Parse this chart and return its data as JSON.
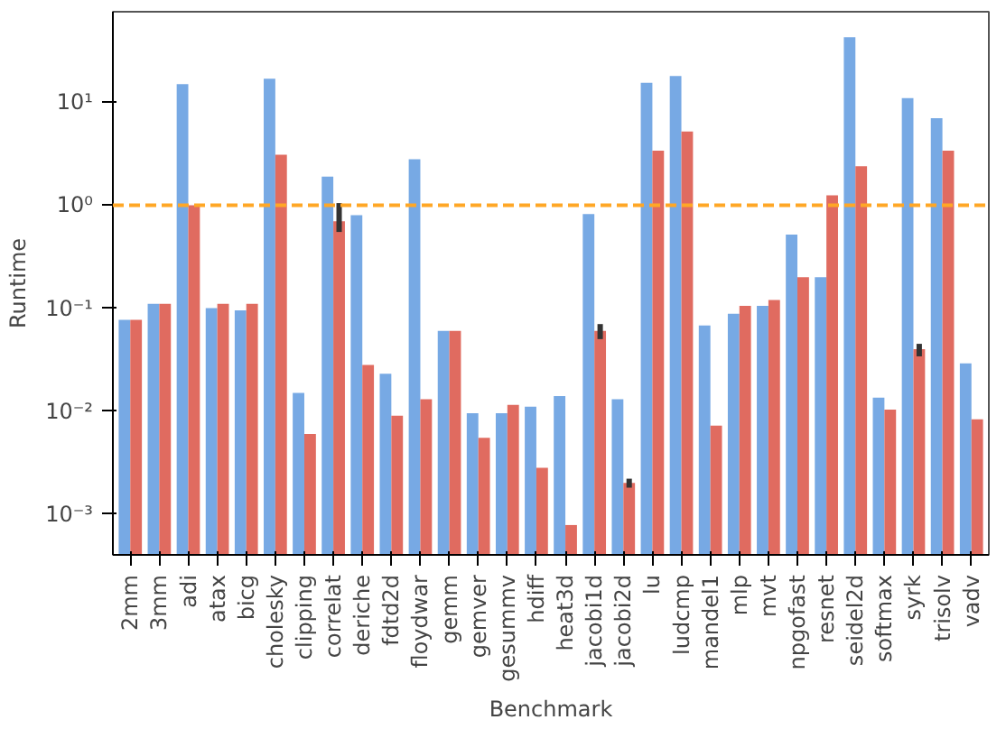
{
  "chart_data": {
    "type": "bar",
    "xlabel": "Benchmark",
    "ylabel": "Runtime",
    "categories": [
      "2mm",
      "3mm",
      "adi",
      "atax",
      "bicg",
      "cholesky",
      "clipping",
      "correlat",
      "deriche",
      "fdtd2d",
      "floydwar",
      "gemm",
      "gemver",
      "gesummv",
      "hdiff",
      "heat3d",
      "jacobi1d",
      "jacobi2d",
      "lu",
      "ludcmp",
      "mandel1",
      "mlp",
      "mvt",
      "npgofast",
      "resnet",
      "seidel2d",
      "softmax",
      "syrk",
      "trisolv",
      "vadv"
    ],
    "series": [
      {
        "color": "#77a9e4",
        "values": [
          0.077,
          0.11,
          15,
          0.1,
          0.095,
          17,
          0.015,
          1.9,
          0.8,
          0.023,
          2.8,
          0.06,
          0.0095,
          0.0095,
          0.011,
          0.014,
          0.82,
          0.013,
          15.5,
          18,
          0.068,
          0.088,
          0.105,
          0.52,
          0.2,
          43,
          0.0135,
          11,
          7,
          0.029
        ]
      },
      {
        "color": "#e06b60",
        "values": [
          0.077,
          0.11,
          1.0,
          0.11,
          0.11,
          3.1,
          0.006,
          0.7,
          0.028,
          0.009,
          0.013,
          0.06,
          0.0055,
          0.0115,
          0.0028,
          0.00078,
          0.06,
          0.002,
          3.4,
          5.2,
          0.0072,
          0.105,
          0.12,
          0.2,
          1.25,
          2.4,
          0.0103,
          0.04,
          3.4,
          0.0083
        ],
        "errors": [
          null,
          null,
          null,
          null,
          null,
          null,
          null,
          [
            0.55,
            1.05
          ],
          null,
          null,
          null,
          null,
          null,
          null,
          null,
          null,
          [
            0.05,
            0.07
          ],
          [
            0.0018,
            0.0022
          ],
          null,
          null,
          null,
          null,
          null,
          null,
          null,
          null,
          null,
          [
            0.034,
            0.045
          ],
          null,
          null
        ]
      }
    ],
    "log": "y",
    "ylim": [
      0.0004,
      76
    ],
    "yticks": [
      {
        "value": 0.001,
        "label": "10⁻³"
      },
      {
        "value": 0.01,
        "label": "10⁻²"
      },
      {
        "value": 0.1,
        "label": "10⁻¹"
      },
      {
        "value": 1,
        "label": "10⁰"
      },
      {
        "value": 10,
        "label": "10¹"
      }
    ],
    "ref_lines": [
      {
        "axis": "y",
        "value": 1,
        "color": "#ffa726",
        "line_style": "dashed"
      }
    ],
    "grid": false
  }
}
